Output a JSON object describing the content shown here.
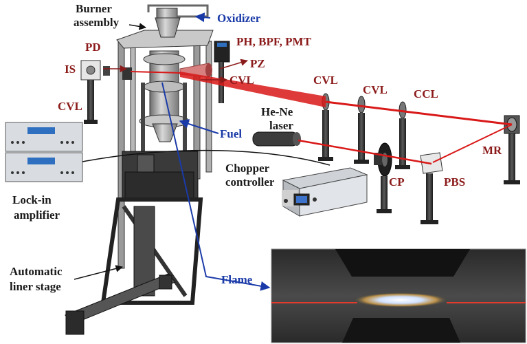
{
  "labels": {
    "burner": [
      "Burner",
      "assembly"
    ],
    "oxidizer": "Oxidizer",
    "ph_bpf_pmt": "PH, BPF, PMT",
    "pd": "PD",
    "is": "IS",
    "pz": "PZ",
    "cvl_mid": "CVL",
    "cvl_left": "CVL",
    "cvl_rail1": "CVL",
    "cvl_rail2": "CVL",
    "ccl": "CCL",
    "hene": [
      "He-Ne",
      "laser"
    ],
    "fuel": "Fuel",
    "mr": "MR",
    "chopper": [
      "Chopper",
      "controller"
    ],
    "cp": "CP",
    "pbs": "PBS",
    "lockin": [
      "Lock-in",
      "amplifier"
    ],
    "stage": [
      "Automatic",
      "liner stage"
    ],
    "flame": "Flame"
  },
  "colors": {
    "dark_label": "#1a1a1a",
    "red_label": "#8b1a1a",
    "blue_label": "#1a3aa8",
    "laser_beam": "#d91818"
  }
}
